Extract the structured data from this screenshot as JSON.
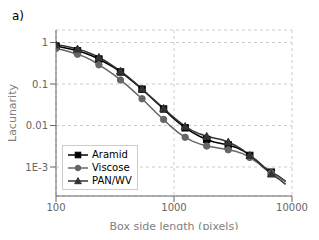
{
  "chart_data": {
    "type": "line",
    "title": "a)",
    "x_label": "Box side length (pixels)",
    "y_label": "Lacunarity",
    "log": true,
    "grid": true,
    "legend": "lower left",
    "xlim": [
      100,
      10000
    ],
    "ylim": [
      0.0002,
      2
    ],
    "xticks": [
      100,
      1000,
      10000
    ],
    "yticks": [
      1,
      0.1,
      0.01,
      {
        "value": 0.001,
        "label": "1E-3"
      }
    ],
    "series": [
      {
        "name": "Aramid",
        "color": "#000000",
        "marker": "square",
        "x": [
          100,
          115,
          132,
          152,
          175,
          201,
          231,
          266,
          306,
          352,
          405,
          466,
          536,
          616,
          709,
          816,
          939,
          1080,
          1243,
          1430,
          1645,
          1893,
          2178,
          2506,
          2882,
          3316,
          3814,
          4388,
          5048,
          5806,
          6679,
          7682,
          8834
        ],
        "values": [
          0.82,
          0.76,
          0.7,
          0.63,
          0.56,
          0.48,
          0.4,
          0.32,
          0.255,
          0.195,
          0.145,
          0.105,
          0.075,
          0.052,
          0.036,
          0.025,
          0.017,
          0.012,
          0.0088,
          0.0068,
          0.0055,
          0.0046,
          0.004,
          0.0037,
          0.0034,
          0.003,
          0.0025,
          0.0019,
          0.0014,
          0.001,
          0.00075,
          0.0006,
          0.00045
        ]
      },
      {
        "name": "Viscose",
        "color": "#666666",
        "marker": "circle",
        "x": [
          100,
          115,
          132,
          152,
          175,
          201,
          231,
          266,
          306,
          352,
          405,
          466,
          536,
          616,
          709,
          816,
          939,
          1080,
          1243,
          1430,
          1645,
          1893,
          2178,
          2506,
          2882,
          3316,
          3814,
          4388,
          5048,
          5806,
          6679,
          7682,
          8834
        ],
        "values": [
          0.72,
          0.66,
          0.59,
          0.52,
          0.45,
          0.37,
          0.29,
          0.225,
          0.17,
          0.125,
          0.09,
          0.063,
          0.044,
          0.03,
          0.02,
          0.014,
          0.0095,
          0.0068,
          0.0052,
          0.0042,
          0.0036,
          0.0032,
          0.003,
          0.0028,
          0.0026,
          0.0024,
          0.0021,
          0.0017,
          0.0013,
          0.00095,
          0.00072,
          0.00058,
          0.00044
        ]
      },
      {
        "name": "PAN/WV",
        "color": "#333333",
        "marker": "triangle",
        "x": [
          100,
          115,
          132,
          152,
          175,
          201,
          231,
          266,
          306,
          352,
          405,
          466,
          536,
          616,
          709,
          816,
          939,
          1080,
          1243,
          1430,
          1645,
          1893,
          2178,
          2506,
          2882,
          3316,
          3814,
          4388,
          5048,
          5806,
          6679,
          7682,
          8834
        ],
        "values": [
          0.88,
          0.83,
          0.77,
          0.7,
          0.62,
          0.53,
          0.44,
          0.35,
          0.27,
          0.205,
          0.15,
          0.108,
          0.076,
          0.053,
          0.037,
          0.026,
          0.018,
          0.013,
          0.0095,
          0.0075,
          0.0063,
          0.0055,
          0.005,
          0.0046,
          0.004,
          0.0033,
          0.0026,
          0.0019,
          0.0014,
          0.00095,
          0.00068,
          0.00052,
          0.00038
        ]
      }
    ]
  }
}
